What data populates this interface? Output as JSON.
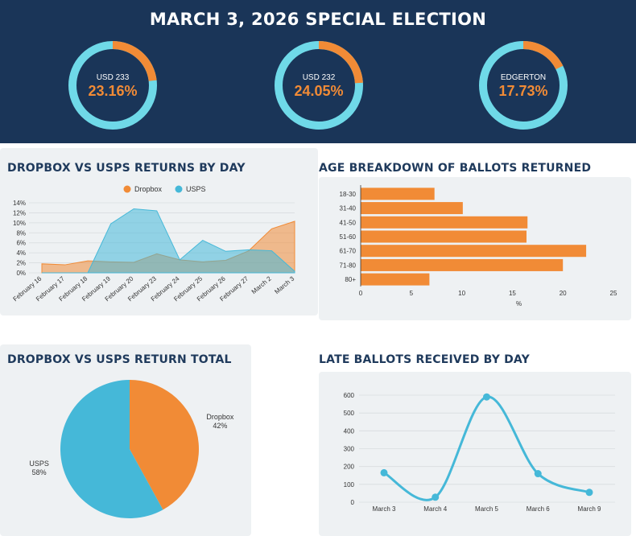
{
  "header": {
    "title": "MARCH 3, 2026 SPECIAL ELECTION",
    "districts": [
      {
        "name": "USD 233",
        "percent_label": "23.16%",
        "percent": 23.16
      },
      {
        "name": "USD 232",
        "percent_label": "24.05%",
        "percent": 24.05
      },
      {
        "name": "EDGERTON",
        "percent_label": "17.73%",
        "percent": 17.73
      }
    ]
  },
  "colors": {
    "header_bg": "#1a3558",
    "dropbox": "#f18b36",
    "usps": "#45b8d8",
    "ring_track": "#6fd9e8",
    "title_text": "#1f3a5c"
  },
  "chart_data": [
    {
      "id": "returns_by_day",
      "type": "area",
      "title": "DROPBOX VS USPS RETURNS BY DAY",
      "categories": [
        "February 16",
        "February 17",
        "February 18",
        "February 19",
        "February 20",
        "February 23",
        "February 24",
        "February 25",
        "February 26",
        "February 27",
        "March 2",
        "March 3"
      ],
      "series": [
        {
          "name": "Dropbox",
          "values": [
            1.8,
            1.6,
            2.4,
            2.2,
            2.1,
            3.8,
            2.6,
            2.2,
            2.5,
            4.4,
            8.8,
            10.3
          ]
        },
        {
          "name": "USPS",
          "values": [
            0,
            0,
            0,
            9.8,
            12.8,
            12.4,
            2.6,
            6.5,
            4.3,
            4.6,
            4.4,
            0.3
          ]
        }
      ],
      "yticks": [
        "0%",
        "2%",
        "4%",
        "6%",
        "8%",
        "10%",
        "12%",
        "14%"
      ],
      "ylim": [
        0,
        14
      ],
      "legend": "top"
    },
    {
      "id": "age_breakdown",
      "type": "bar",
      "orientation": "horizontal",
      "title": "AGE BREAKDOWN OF BALLOTS RETURNED",
      "categories": [
        "18-30",
        "31-40",
        "41-50",
        "51-60",
        "61-70",
        "71-80",
        "80+"
      ],
      "values": [
        7.3,
        10.1,
        16.5,
        16.4,
        22.3,
        20.0,
        6.8
      ],
      "xticks": [
        "0",
        "5",
        "10",
        "15",
        "20",
        "25"
      ],
      "xlim": [
        0,
        25
      ],
      "xlabel": "%"
    },
    {
      "id": "return_total",
      "type": "pie",
      "title": "DROPBOX VS USPS RETURN TOTAL",
      "slices": [
        {
          "name": "Dropbox",
          "value": 42,
          "label": "42%"
        },
        {
          "name": "USPS",
          "value": 58,
          "label": "58%"
        }
      ]
    },
    {
      "id": "late_ballots",
      "type": "line",
      "title": "LATE BALLOTS RECEIVED BY DAY",
      "categories": [
        "March 3",
        "March 4",
        "March 5",
        "March 6",
        "March 9"
      ],
      "values": [
        165,
        28,
        590,
        160,
        55
      ],
      "yticks": [
        "0",
        "100",
        "200",
        "300",
        "400",
        "500",
        "600"
      ],
      "ylim": [
        0,
        600
      ]
    }
  ]
}
